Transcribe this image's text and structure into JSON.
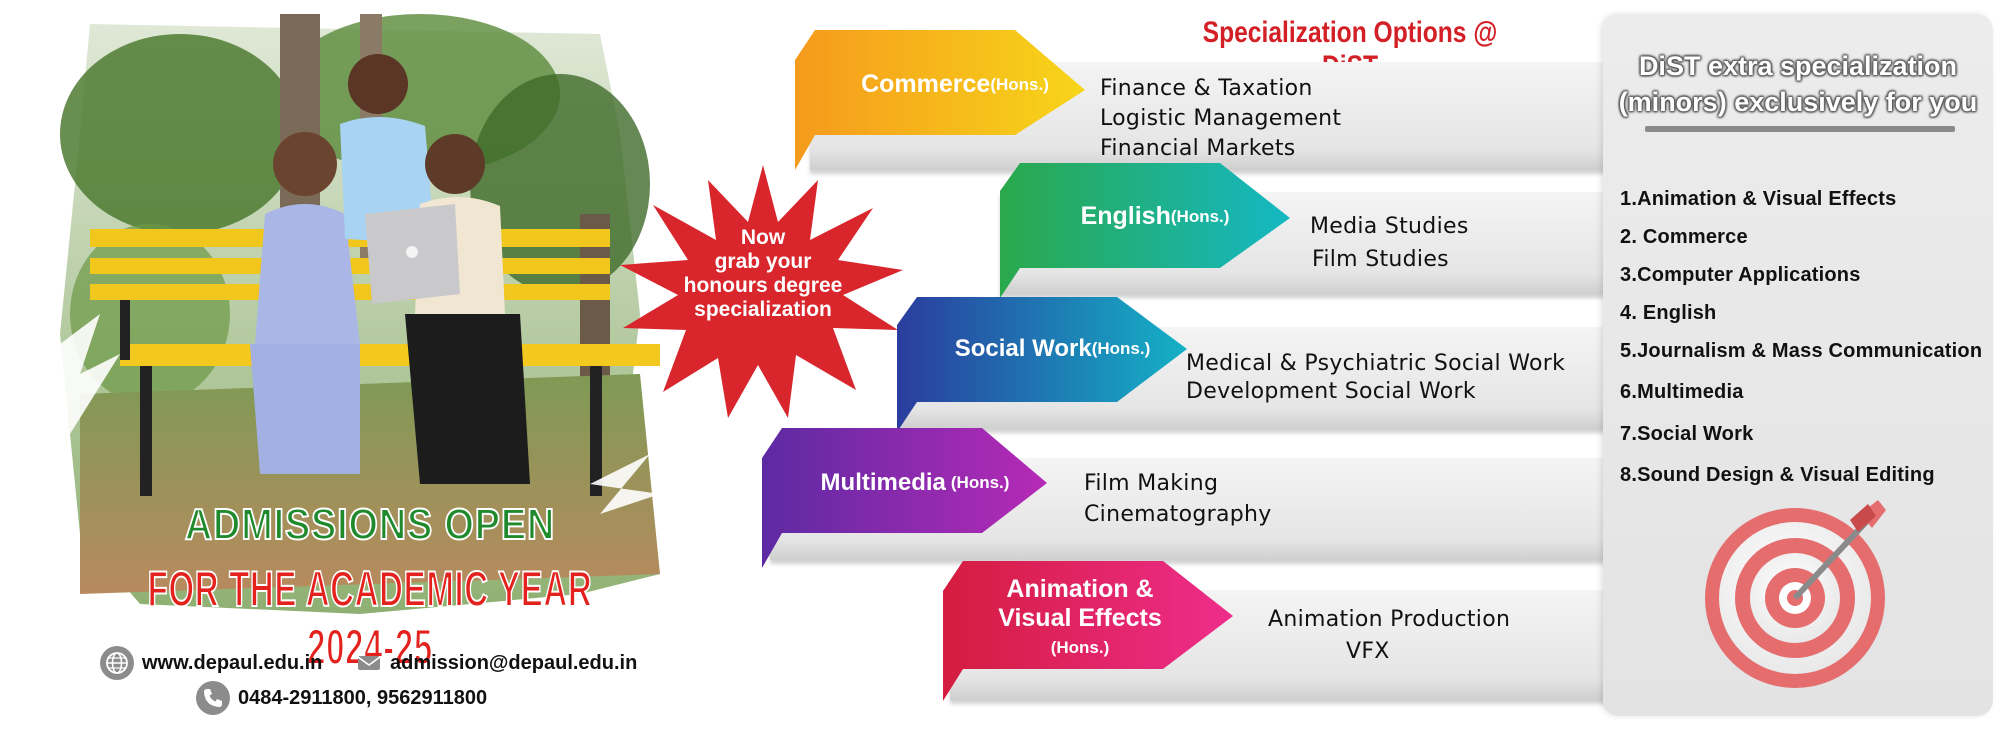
{
  "banner": {
    "headline": "Specialization Options @ DiST",
    "burst_text": "Now grab your honours degree specialization",
    "burst_lines": [
      "Now",
      "grab your",
      "honours degree",
      "specialization"
    ]
  },
  "left": {
    "admissions_open": "ADMISSIONS OPEN",
    "academic_year": "FOR THE ACADEMIC YEAR 2024-25",
    "website": "www.depaul.edu.in",
    "email": "admission@depaul.edu.in",
    "phone": "0484-2911800, 9562911800"
  },
  "programs": [
    {
      "name": "Commerce",
      "hons": "(Hons.)",
      "color": "#f6b21b",
      "subjects": [
        "Finance  & Taxation",
        "Logistic Management",
        "Financial Markets"
      ]
    },
    {
      "name": "English",
      "hons": "(Hons.)",
      "color": "#1cb39a",
      "subjects": [
        "Media Studies",
        "Film Studies"
      ]
    },
    {
      "name": "Social Work",
      "hons": "(Hons.)",
      "color": "#1f5ab0",
      "subjects": [
        "Medical & Psychiatric Social Work",
        "Development Social Work"
      ]
    },
    {
      "name": "Multimedia",
      "hons": "(Hons.)",
      "color": "#7a2da3",
      "subjects": [
        "Film Making",
        "Cinematography"
      ]
    },
    {
      "name": "Animation & Visual Effects",
      "name_lines": [
        "Animation &",
        "Visual Effects"
      ],
      "hons": "(Hons.)",
      "color": "#e21d5a",
      "subjects": [
        "Animation Production",
        "VFX"
      ]
    }
  ],
  "minors": {
    "title_line1": "DiST extra specialization",
    "title_line2": "(minors) exclusively for you",
    "items": [
      "1.Animation & Visual Effects",
      "2. Commerce",
      "3.Computer Applications",
      "4. English",
      "5.Journalism & Mass Communication",
      "6.Multimedia",
      "7.Social Work",
      "8.Sound Design & Visual Editing"
    ]
  }
}
